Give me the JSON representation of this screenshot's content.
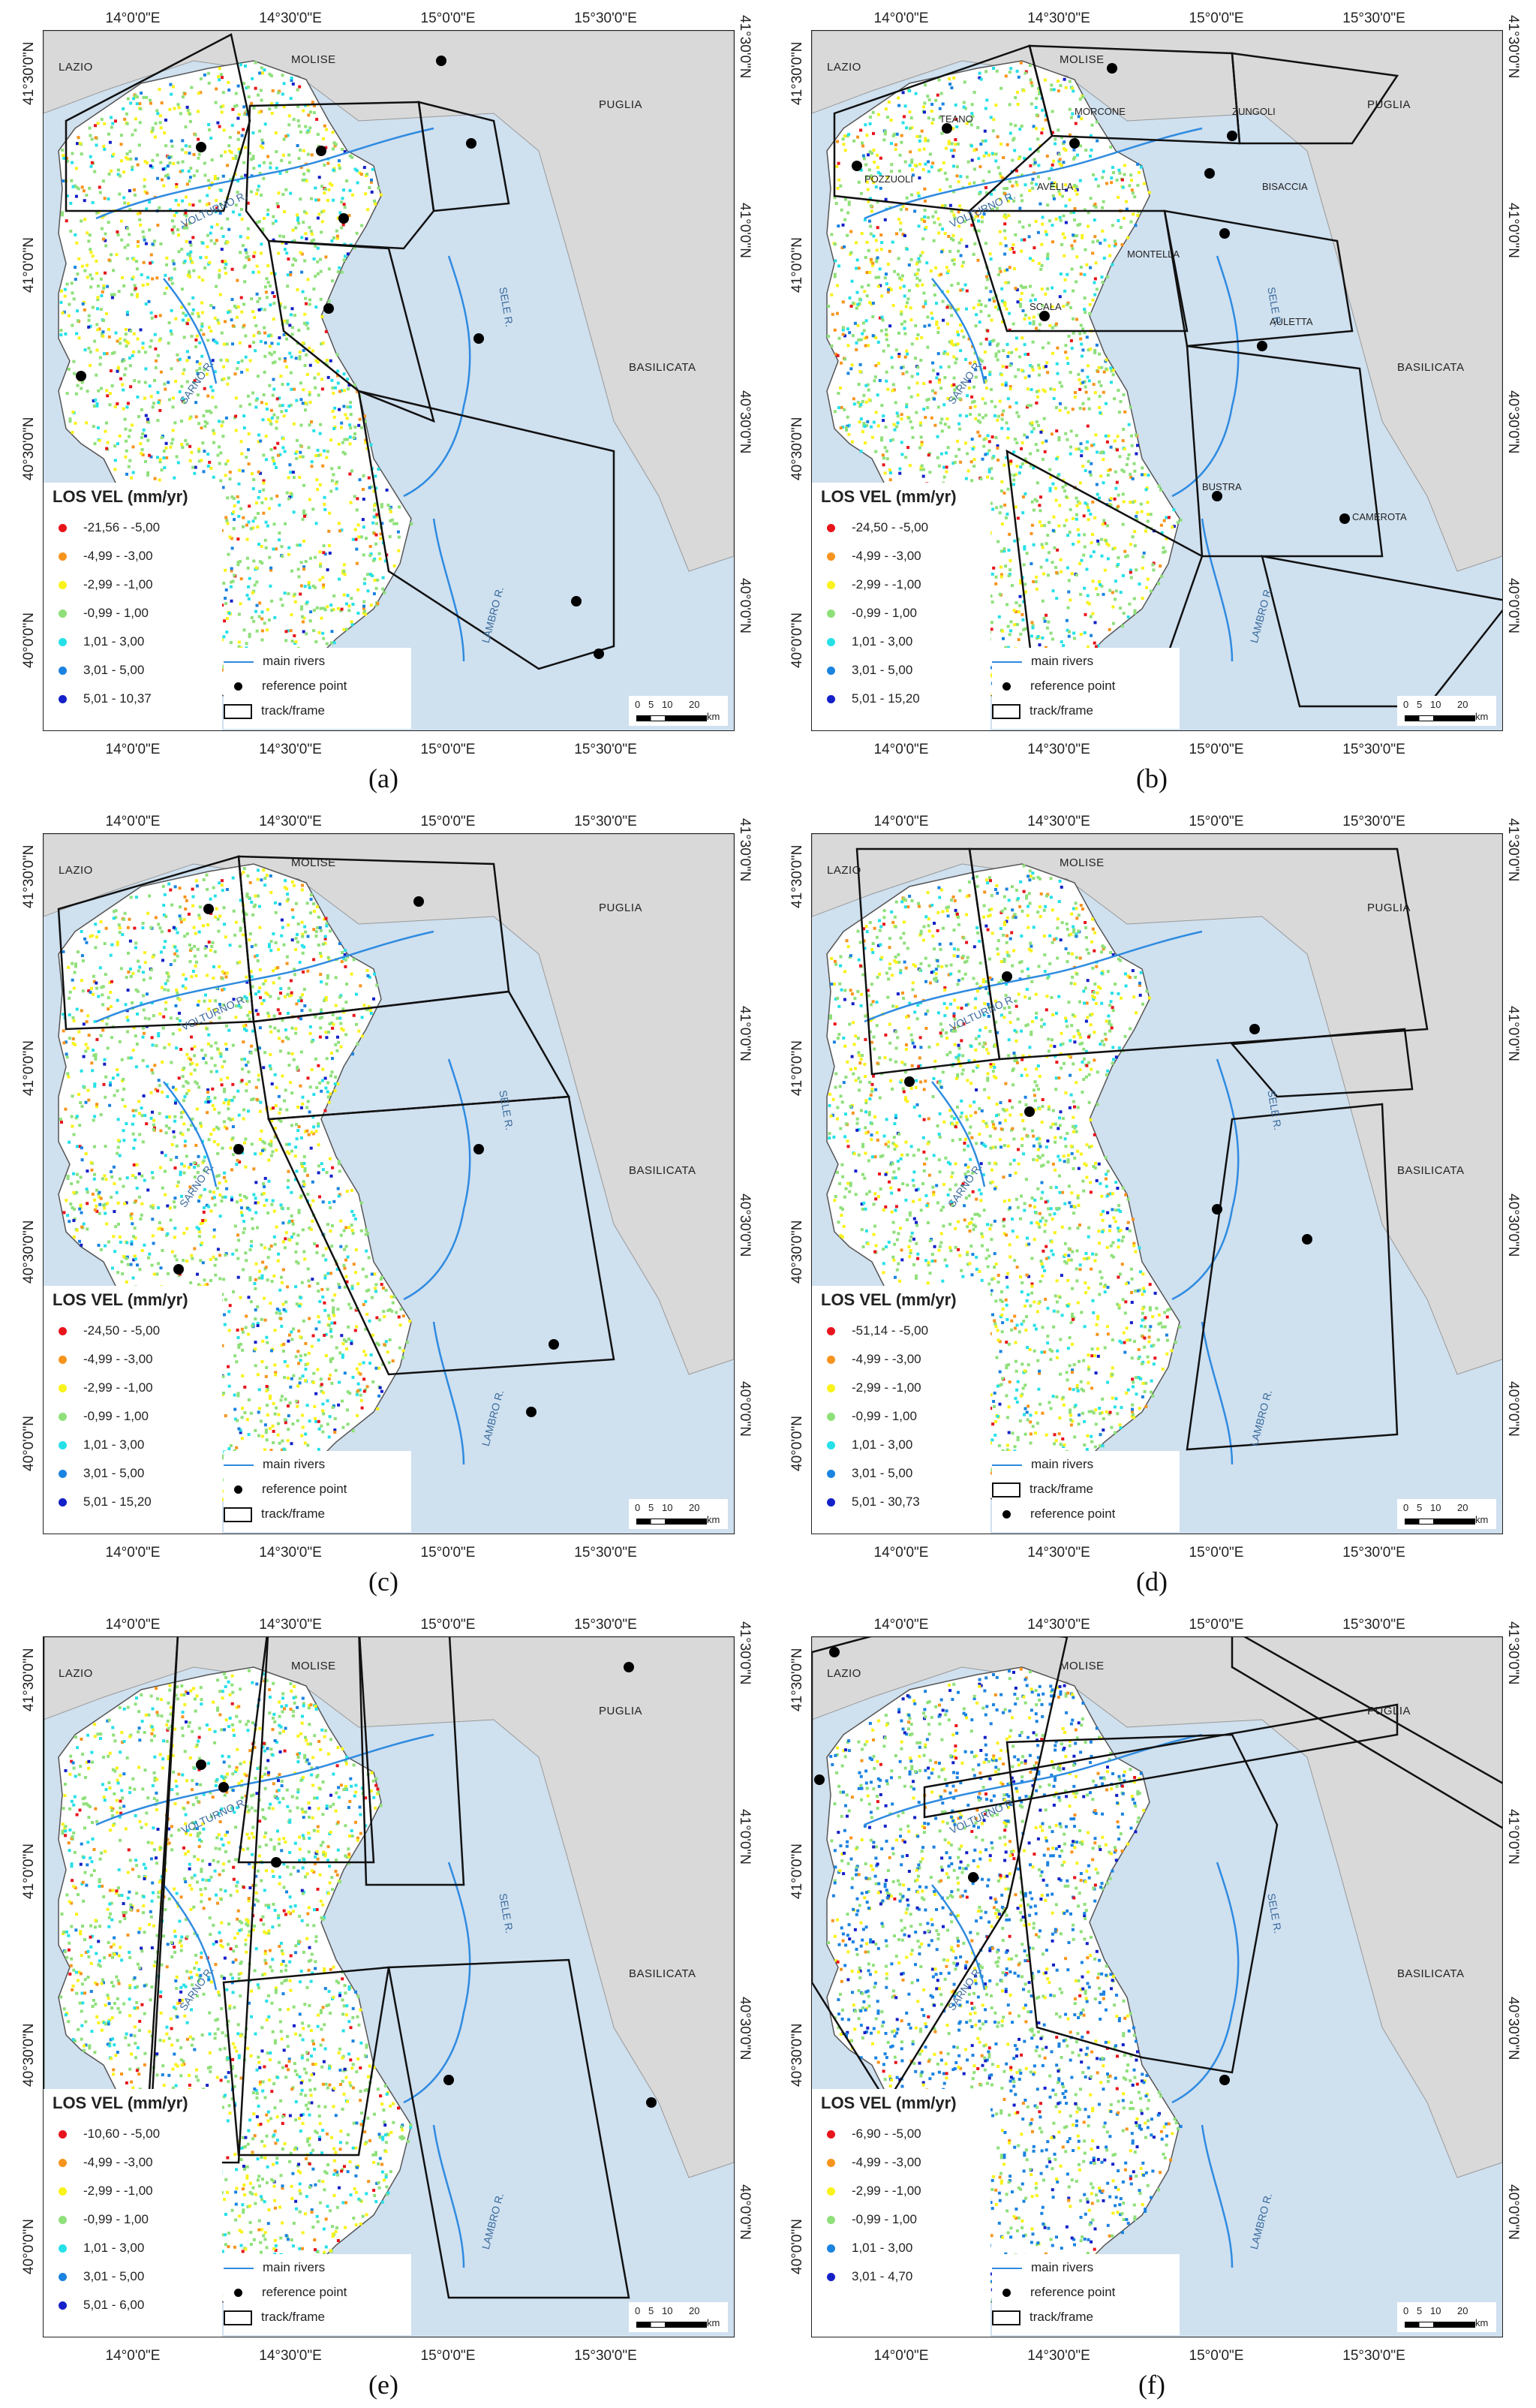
{
  "figure": {
    "panels": [
      {
        "id": "a",
        "caption": "(a)",
        "x_ticks": [
          "14°0'0\"E",
          "14°30'0\"E",
          "15°0'0\"E",
          "15°30'0\"E"
        ],
        "y_ticks": [
          "41°30'0\"N",
          "41°0'0\"N",
          "40°30'0\"N",
          "40°0'0\"N"
        ],
        "regions": [
          "LAZIO",
          "MOLISE",
          "PUGLIA",
          "BASILICATA"
        ],
        "rivers": [
          "VOLTURNO R.",
          "SARNO R.",
          "SELE R.",
          "LAMBRO R."
        ],
        "sites": [],
        "legend": {
          "title": "LOS VEL (mm/yr)",
          "classes": [
            {
              "label": "-21,56 - -5,00",
              "color": "#e8141c"
            },
            {
              "label": "-4,99 - -3,00",
              "color": "#f7941d"
            },
            {
              "label": "-2,99 - -1,00",
              "color": "#f9f21b"
            },
            {
              "label": "-0,99 - 1,00",
              "color": "#8fe07a"
            },
            {
              "label": "1,01 - 3,00",
              "color": "#26e0e8"
            },
            {
              "label": "3,01 - 5,00",
              "color": "#1b83e0"
            },
            {
              "label": "5,01 - 10,37",
              "color": "#1420c8"
            }
          ],
          "symbols": [
            "main rivers",
            "reference point",
            "track/frame"
          ]
        },
        "scale": {
          "ticks": [
            "0",
            "5",
            "10",
            "20"
          ],
          "unit": "km"
        }
      },
      {
        "id": "b",
        "caption": "(b)",
        "x_ticks": [
          "14°0'0\"E",
          "14°30'0\"E",
          "15°0'0\"E",
          "15°30'0\"E"
        ],
        "y_ticks": [
          "41°30'0\"N",
          "41°0'0\"N",
          "40°30'0\"N",
          "40°0'0\"N"
        ],
        "regions": [
          "LAZIO",
          "MOLISE",
          "PUGLIA",
          "BASILICATA"
        ],
        "rivers": [
          "VOLTURNO R.",
          "SARNO R.",
          "SELE R.",
          "LAMBRO R."
        ],
        "sites": [
          "TEANO",
          "MORCONE",
          "ZUNGOLI",
          "POZZUOLI",
          "AVELLA",
          "BISACCIA",
          "MONTELLA",
          "SCALA",
          "AULETTA",
          "BUSTRA",
          "CAMEROTA"
        ],
        "legend": {
          "title": "LOS VEL (mm/yr)",
          "classes": [
            {
              "label": "-24,50 - -5,00",
              "color": "#e8141c"
            },
            {
              "label": "-4,99 - -3,00",
              "color": "#f7941d"
            },
            {
              "label": "-2,99 - -1,00",
              "color": "#f9f21b"
            },
            {
              "label": "-0,99 - 1,00",
              "color": "#8fe07a"
            },
            {
              "label": "1,01 - 3,00",
              "color": "#26e0e8"
            },
            {
              "label": "3,01 - 5,00",
              "color": "#1b83e0"
            },
            {
              "label": "5,01 - 15,20",
              "color": "#1420c8"
            }
          ],
          "symbols": [
            "main rivers",
            "reference point",
            "track/frame"
          ]
        },
        "scale": {
          "ticks": [
            "0",
            "5",
            "10",
            "20"
          ],
          "unit": "km"
        }
      },
      {
        "id": "c",
        "caption": "(c)",
        "x_ticks": [
          "14°0'0\"E",
          "14°30'0\"E",
          "15°0'0\"E",
          "15°30'0\"E"
        ],
        "y_ticks": [
          "41°30'0\"N",
          "41°0'0\"N",
          "40°30'0\"N",
          "40°0'0\"N"
        ],
        "regions": [
          "LAZIO",
          "MOLISE",
          "PUGLIA",
          "BASILICATA"
        ],
        "rivers": [
          "VOLTURNO R.",
          "SARNO R.",
          "SELE R.",
          "LAMBRO R."
        ],
        "sites": [],
        "legend": {
          "title": "LOS VEL (mm/yr)",
          "classes": [
            {
              "label": "-24,50 - -5,00",
              "color": "#e8141c"
            },
            {
              "label": "-4,99 - -3,00",
              "color": "#f7941d"
            },
            {
              "label": "-2,99 - -1,00",
              "color": "#f9f21b"
            },
            {
              "label": "-0,99 - 1,00",
              "color": "#8fe07a"
            },
            {
              "label": "1,01 - 3,00",
              "color": "#26e0e8"
            },
            {
              "label": "3,01 - 5,00",
              "color": "#1b83e0"
            },
            {
              "label": "5,01 - 15,20",
              "color": "#1420c8"
            }
          ],
          "symbols": [
            "main rivers",
            "reference point",
            "track/frame"
          ]
        },
        "scale": {
          "ticks": [
            "0",
            "5",
            "10",
            "20"
          ],
          "unit": "km"
        }
      },
      {
        "id": "d",
        "caption": "(d)",
        "x_ticks": [
          "14°0'0\"E",
          "14°30'0\"E",
          "15°0'0\"E",
          "15°30'0\"E"
        ],
        "y_ticks": [
          "41°30'0\"N",
          "41°0'0\"N",
          "40°30'0\"N",
          "40°0'0\"N"
        ],
        "regions": [
          "LAZIO",
          "MOLISE",
          "PUGLIA",
          "BASILICATA"
        ],
        "rivers": [
          "VOLTURNO R.",
          "SARNO R.",
          "SELE R.",
          "LAMBRO R."
        ],
        "sites": [],
        "legend": {
          "title": "LOS VEL (mm/yr)",
          "classes": [
            {
              "label": "-51,14 - -5,00",
              "color": "#e8141c"
            },
            {
              "label": "-4,99 - -3,00",
              "color": "#f7941d"
            },
            {
              "label": "-2,99 - -1,00",
              "color": "#f9f21b"
            },
            {
              "label": "-0,99 - 1,00",
              "color": "#8fe07a"
            },
            {
              "label": "1,01 - 3,00",
              "color": "#26e0e8"
            },
            {
              "label": "3,01 - 5,00",
              "color": "#1b83e0"
            },
            {
              "label": "5,01 - 30,73",
              "color": "#1420c8"
            }
          ],
          "symbols": [
            "main rivers",
            "track/frame",
            "reference point"
          ]
        },
        "scale": {
          "ticks": [
            "0",
            "5",
            "10",
            "20"
          ],
          "unit": "km"
        }
      },
      {
        "id": "e",
        "caption": "(e)",
        "x_ticks": [
          "14°0'0\"E",
          "14°30'0\"E",
          "15°0'0\"E",
          "15°30'0\"E"
        ],
        "y_ticks": [
          "41°30'0\"N",
          "41°0'0\"N",
          "40°30'0\"N",
          "40°0'0\"N"
        ],
        "regions": [
          "LAZIO",
          "MOLISE",
          "PUGLIA",
          "BASILICATA"
        ],
        "rivers": [
          "VOLTURNO R.",
          "SARNO R.",
          "SELE R.",
          "LAMBRO R."
        ],
        "sites": [],
        "legend": {
          "title": "LOS VEL (mm/yr)",
          "classes": [
            {
              "label": "-10,60 - -5,00",
              "color": "#e8141c"
            },
            {
              "label": "-4,99 - -3,00",
              "color": "#f7941d"
            },
            {
              "label": "-2,99 - -1,00",
              "color": "#f9f21b"
            },
            {
              "label": "-0,99 - 1,00",
              "color": "#8fe07a"
            },
            {
              "label": "1,01 - 3,00",
              "color": "#26e0e8"
            },
            {
              "label": "3,01 - 5,00",
              "color": "#1b83e0"
            },
            {
              "label": "5,01 - 6,00",
              "color": "#1420c8"
            }
          ],
          "symbols": [
            "main rivers",
            "reference point",
            "track/frame"
          ]
        },
        "scale": {
          "ticks": [
            "0",
            "5",
            "10",
            "20"
          ],
          "unit": "km"
        }
      },
      {
        "id": "f",
        "caption": "(f)",
        "x_ticks": [
          "14°0'0\"E",
          "14°30'0\"E",
          "15°0'0\"E",
          "15°30'0\"E"
        ],
        "y_ticks": [
          "41°30'0\"N",
          "41°0'0\"N",
          "40°30'0\"N",
          "40°0'0\"N"
        ],
        "regions": [
          "LAZIO",
          "MOLISE",
          "PUGLIA",
          "BASILICATA"
        ],
        "rivers": [
          "VOLTURNO R.",
          "SARNO R.",
          "SELE R.",
          "LAMBRO R."
        ],
        "sites": [],
        "legend": {
          "title": "LOS VEL (mm/yr)",
          "classes": [
            {
              "label": "-6,90 - -5,00",
              "color": "#e8141c"
            },
            {
              "label": "-4,99 - -3,00",
              "color": "#f7941d"
            },
            {
              "label": "-2,99 - -1,00",
              "color": "#f9f21b"
            },
            {
              "label": "-0,99 - 1,00",
              "color": "#8fe07a"
            },
            {
              "label": "1,01 - 3,00",
              "color": "#1b83e0"
            },
            {
              "label": "3,01 - 4,70",
              "color": "#1420c8"
            }
          ],
          "symbols": [
            "main rivers",
            "reference point",
            "track/frame"
          ]
        },
        "scale": {
          "ticks": [
            "0",
            "5",
            "10",
            "20"
          ],
          "unit": "km"
        }
      }
    ],
    "colors": {
      "sea": "#cfe0ef",
      "outside_land": "#d9d9d9",
      "region_land": "#ffffff",
      "river": "#2f8be0"
    }
  }
}
